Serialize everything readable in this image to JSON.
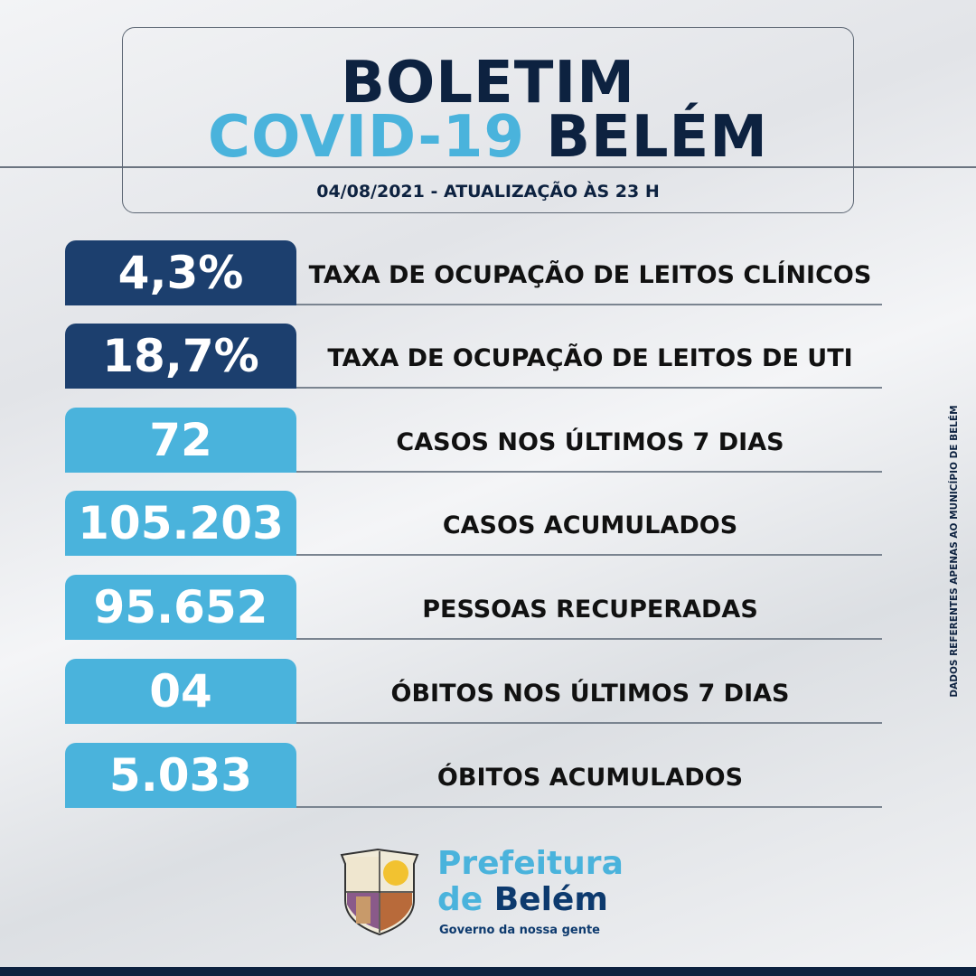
{
  "header": {
    "line1": "BOLETIM",
    "line2_a": "COVID-19",
    "line2_b": "BELÉM",
    "date": "04/08/2021 - ATUALIZAÇÃO ÀS 23 H"
  },
  "colors": {
    "navy": "#0d2240",
    "dark_box": "#1c3f6e",
    "light_box": "#4ab3dc"
  },
  "stats": [
    {
      "value": "4,3%",
      "label": "TAXA DE OCUPAÇÃO DE LEITOS CLÍNICOS",
      "style": "dark"
    },
    {
      "value": "18,7%",
      "label": "TAXA DE OCUPAÇÃO DE LEITOS DE UTI",
      "style": "dark"
    },
    {
      "value": "72",
      "label": "CASOS NOS ÚLTIMOS 7 DIAS",
      "style": "light"
    },
    {
      "value": "105.203",
      "label": "CASOS ACUMULADOS",
      "style": "light"
    },
    {
      "value": "95.652",
      "label": "PESSOAS RECUPERADAS",
      "style": "light"
    },
    {
      "value": "04",
      "label": "ÓBITOS NOS ÚLTIMOS 7 DIAS",
      "style": "light"
    },
    {
      "value": "5.033",
      "label": "ÓBITOS ACUMULADOS",
      "style": "light"
    }
  ],
  "side_note": "DADOS REFERENTES APENAS AO MUNICÍPIO DE BELÉM",
  "footer": {
    "brand_1": "Prefeitura",
    "brand_2a": "de ",
    "brand_2b": "Belém",
    "slogan": "Governo da nossa gente",
    "logo": "belem-coat-of-arms"
  }
}
